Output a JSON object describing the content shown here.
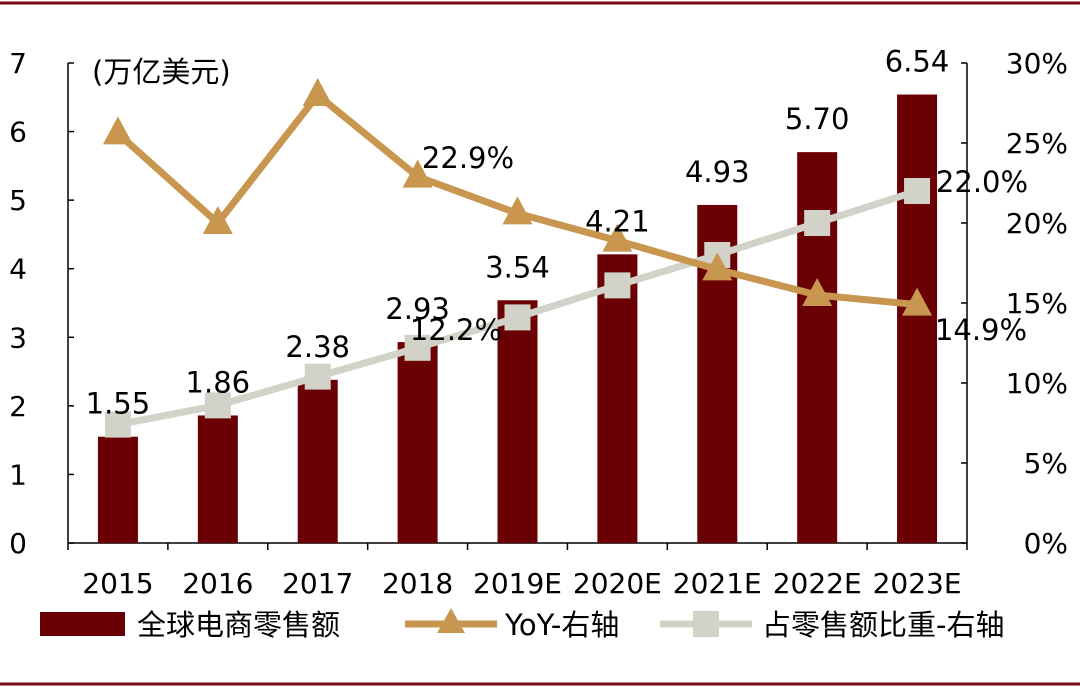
{
  "chart_data": {
    "type": "bar",
    "unit_label": "(万亿美元)",
    "categories": [
      "2015",
      "2016",
      "2017",
      "2018",
      "2019E",
      "2020E",
      "2021E",
      "2022E",
      "2023E"
    ],
    "y_left": {
      "ylim": [
        0,
        7
      ],
      "ticks": [
        "0",
        "1",
        "2",
        "3",
        "4",
        "5",
        "6",
        "7"
      ]
    },
    "y_right": {
      "ylim": [
        0,
        30
      ],
      "ticks": [
        "0%",
        "5%",
        "10%",
        "15%",
        "20%",
        "25%",
        "30%"
      ]
    },
    "series": [
      {
        "name": "全球电商零售额",
        "type": "bar",
        "axis": "left",
        "values": [
          1.55,
          1.86,
          2.38,
          2.93,
          3.54,
          4.21,
          4.93,
          5.7,
          6.54
        ],
        "labels": [
          "1.55",
          "1.86",
          "2.38",
          "2.93",
          "3.54",
          "4.21",
          "4.93",
          "5.70",
          "6.54"
        ]
      },
      {
        "name": "YoY-右轴",
        "type": "line",
        "marker": "triangle",
        "axis": "right",
        "values": [
          25.6,
          20.0,
          28.0,
          22.9,
          20.6,
          18.9,
          17.1,
          15.5,
          14.9
        ],
        "labels": [
          "",
          "",
          "",
          "22.9%",
          "",
          "",
          "",
          "",
          "14.9%"
        ]
      },
      {
        "name": "占零售额比重-右轴",
        "type": "line",
        "marker": "square",
        "axis": "right",
        "values": [
          7.4,
          8.6,
          10.4,
          12.2,
          14.1,
          16.1,
          18.0,
          20.0,
          22.0
        ],
        "labels": [
          "",
          "",
          "",
          "12.2%",
          "",
          "",
          "",
          "",
          "22.0%"
        ]
      }
    ],
    "colors": {
      "bar": "#6b0004",
      "yoy": "#c8964f",
      "share": "#d2d2c8",
      "border": "#7a0a14"
    },
    "legend_position": "bottom",
    "grid": false
  }
}
